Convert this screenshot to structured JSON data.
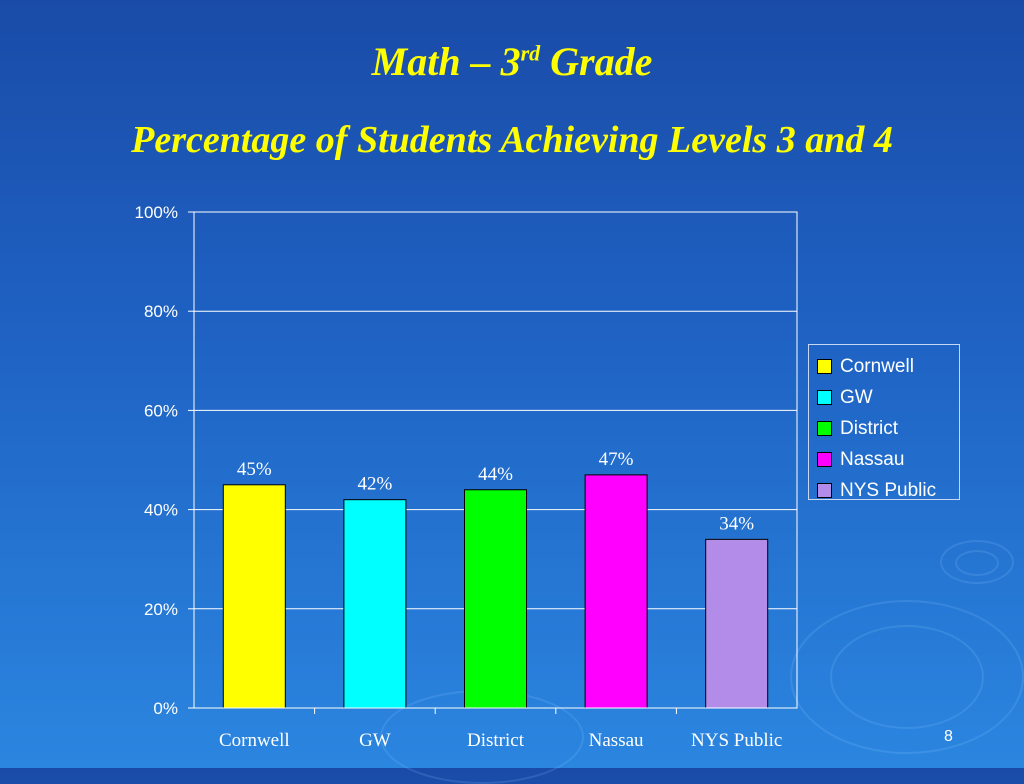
{
  "slide": {
    "title_main": "Math – 3",
    "title_sup": "rd",
    "title_tail": " Grade",
    "subtitle": "Percentage of Students Achieving Levels 3 and 4",
    "page_number": "8"
  },
  "chart_data": {
    "type": "bar",
    "categories": [
      "Cornwell",
      "GW",
      "District",
      "Nassau",
      "NYS Public"
    ],
    "values": [
      45,
      42,
      44,
      47,
      34
    ],
    "data_labels": [
      "45%",
      "42%",
      "44%",
      "47%",
      "34%"
    ],
    "colors": [
      "#ffff00",
      "#00ffff",
      "#00ff00",
      "#ff00ff",
      "#b28ce8"
    ],
    "ylim": [
      0,
      100
    ],
    "yticks": [
      0,
      20,
      40,
      60,
      80,
      100
    ],
    "ytick_labels": [
      "0%",
      "20%",
      "40%",
      "60%",
      "80%",
      "100%"
    ],
    "grid": true,
    "legend_position": "right",
    "legend": [
      "Cornwell",
      "GW",
      "District",
      "Nassau",
      "NYS Public"
    ]
  }
}
